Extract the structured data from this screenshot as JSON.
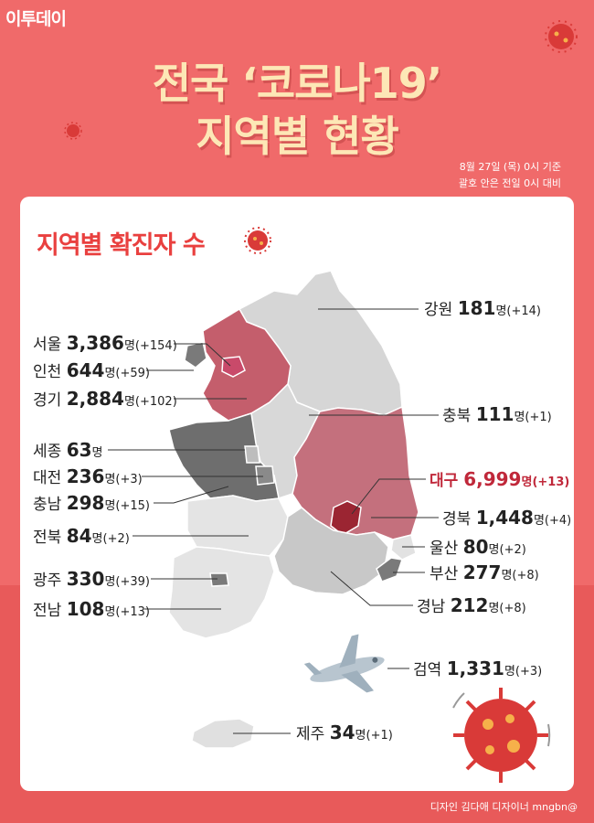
{
  "logo": "이투데이",
  "title_line1": "전국 ‘코로나19’",
  "title_line2": "지역별 현황",
  "note_line1": "8월 27일 (목) 0시 기준",
  "note_line2": "괄호 안은 전일 0시 대비",
  "section_title": "지역별 확진자 수",
  "footer": "디자인 김다애 디자이너 mngbn@",
  "colors": {
    "background": "#f06a6a",
    "accent": "#e9403f",
    "title": "#fde7b6",
    "highlight": "#c0283a"
  },
  "chart_data": {
    "type": "table",
    "unit": "명",
    "regions": [
      {
        "name": "강원",
        "value": "181",
        "change": "(+14)"
      },
      {
        "name": "서울",
        "value": "3,386",
        "change": "(+154)"
      },
      {
        "name": "인천",
        "value": "644",
        "change": "(+59)"
      },
      {
        "name": "경기",
        "value": "2,884",
        "change": "(+102)"
      },
      {
        "name": "충북",
        "value": "111",
        "change": "(+1)"
      },
      {
        "name": "세종",
        "value": "63",
        "change": ""
      },
      {
        "name": "대전",
        "value": "236",
        "change": "(+3)"
      },
      {
        "name": "대구",
        "value": "6,999",
        "change": "(+13)"
      },
      {
        "name": "충남",
        "value": "298",
        "change": "(+15)"
      },
      {
        "name": "경북",
        "value": "1,448",
        "change": "(+4)"
      },
      {
        "name": "전북",
        "value": "84",
        "change": "(+2)"
      },
      {
        "name": "울산",
        "value": "80",
        "change": "(+2)"
      },
      {
        "name": "부산",
        "value": "277",
        "change": "(+8)"
      },
      {
        "name": "광주",
        "value": "330",
        "change": "(+39)"
      },
      {
        "name": "경남",
        "value": "212",
        "change": "(+8)"
      },
      {
        "name": "전남",
        "value": "108",
        "change": "(+13)"
      },
      {
        "name": "검역",
        "value": "1,331",
        "change": "(+3)"
      },
      {
        "name": "제주",
        "value": "34",
        "change": "(+1)"
      }
    ]
  }
}
